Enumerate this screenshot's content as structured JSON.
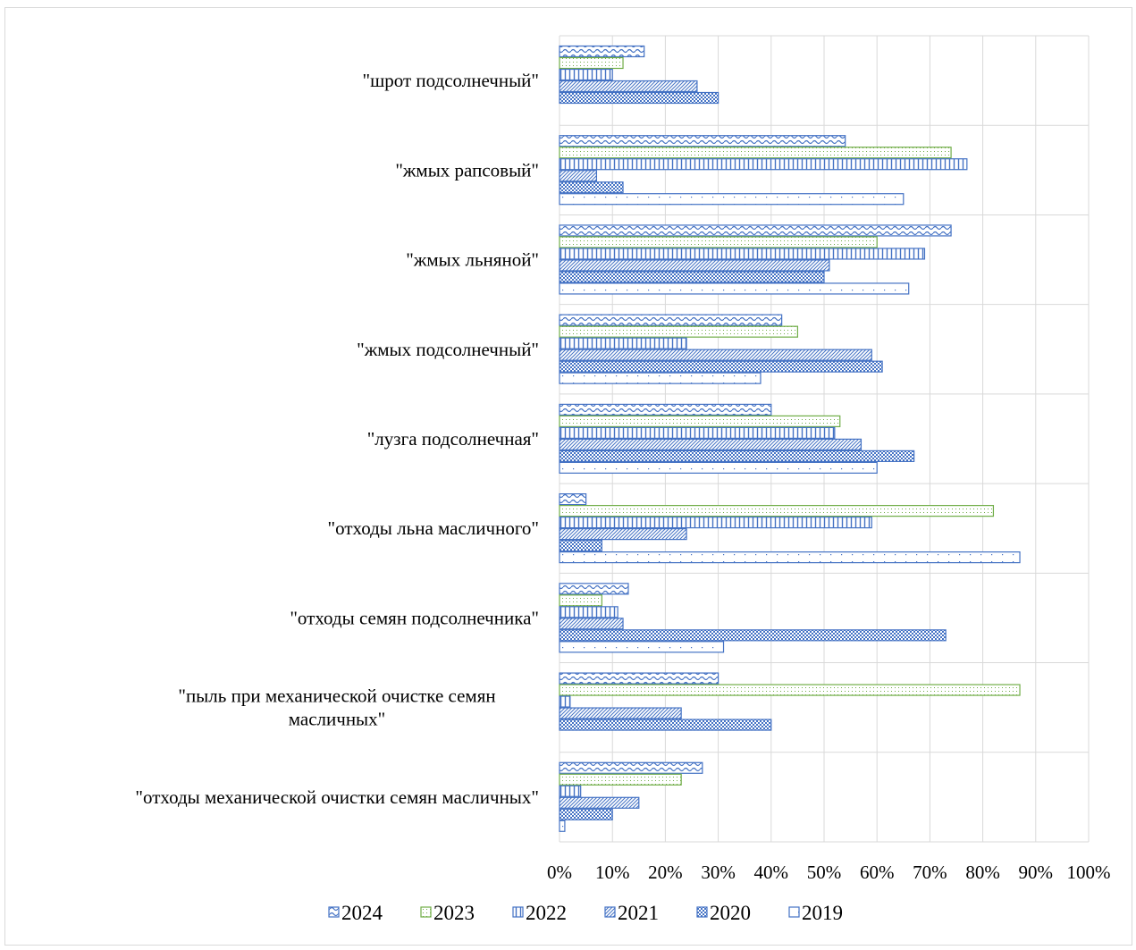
{
  "chart_data": {
    "type": "bar",
    "orientation": "horizontal",
    "categories": [
      "\"шрот подсолнечный\"",
      "\"жмых рапсовый\"",
      "\"жмых льняной\"",
      "\"жмых подсолнечный\"",
      "\"лузга подсолнечная\"",
      "\"отходы льна масличного\"",
      "\"отходы семян подсолнечника\"",
      "\"пыль при механической очистке семян масличных\"",
      "\"отходы механической очистки семян масличных\""
    ],
    "category_lines": [
      [
        "\"шрот подсолнечный\""
      ],
      [
        "\"жмых рапсовый\""
      ],
      [
        "\"жмых льняной\""
      ],
      [
        "\"жмых подсолнечный\""
      ],
      [
        "\"лузга подсолнечная\""
      ],
      [
        "\"отходы льна масличного\""
      ],
      [
        "\"отходы семян подсолнечника\""
      ],
      [
        "\"пыль при механической очистке семян",
        "масличных\""
      ],
      [
        "\"отходы механической очистки семян масличных\""
      ]
    ],
    "series": [
      {
        "name": "2024",
        "pattern": "wave",
        "values": [
          16,
          54,
          74,
          42,
          40,
          5,
          13,
          30,
          27
        ]
      },
      {
        "name": "2023",
        "pattern": "green",
        "values": [
          12,
          74,
          60,
          45,
          53,
          82,
          8,
          87,
          23
        ]
      },
      {
        "name": "2022",
        "pattern": "vert",
        "values": [
          10,
          77,
          69,
          24,
          52,
          59,
          11,
          2,
          4
        ]
      },
      {
        "name": "2021",
        "pattern": "diag",
        "values": [
          26,
          7,
          51,
          59,
          57,
          24,
          12,
          23,
          15
        ]
      },
      {
        "name": "2020",
        "pattern": "check",
        "values": [
          30,
          12,
          50,
          61,
          67,
          8,
          73,
          40,
          10
        ]
      },
      {
        "name": "2019",
        "pattern": "dots",
        "values": [
          null,
          65,
          66,
          38,
          60,
          87,
          31,
          null,
          1
        ]
      }
    ],
    "x_ticks": [
      "0%",
      "10%",
      "20%",
      "30%",
      "40%",
      "50%",
      "60%",
      "70%",
      "80%",
      "90%",
      "100%"
    ],
    "xlim": [
      0,
      100
    ],
    "title": "",
    "xlabel": "",
    "ylabel": "",
    "grid": true,
    "legend_position": "bottom",
    "colors": {
      "bar_outline": "#4472c4",
      "green_outline": "#70ad47",
      "grid": "#d9d9d9"
    }
  }
}
